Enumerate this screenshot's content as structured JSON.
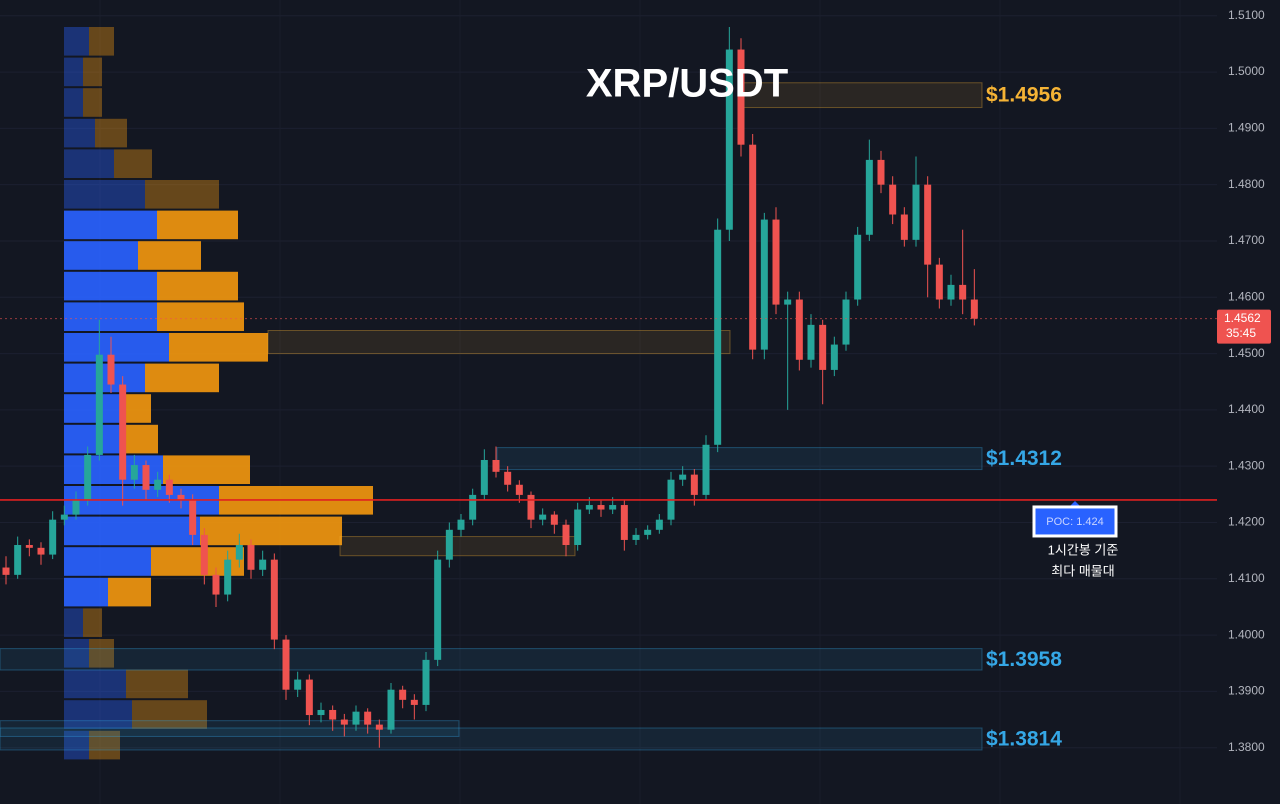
{
  "chart_data": {
    "type": "candlestick",
    "title": "XRP/USDT",
    "ylim": [
      1.37,
      1.5128
    ],
    "yticks": [
      {
        "value": 1.38,
        "label": "1.3800"
      },
      {
        "value": 1.39,
        "label": "1.3900"
      },
      {
        "value": 1.4,
        "label": "1.4000"
      },
      {
        "value": 1.41,
        "label": "1.4100"
      },
      {
        "value": 1.42,
        "label": "1.4200"
      },
      {
        "value": 1.43,
        "label": "1.4300"
      },
      {
        "value": 1.44,
        "label": "1.4400"
      },
      {
        "value": 1.45,
        "label": "1.4500"
      },
      {
        "value": 1.46,
        "label": "1.4600"
      },
      {
        "value": 1.47,
        "label": "1.4700"
      },
      {
        "value": 1.48,
        "label": "1.4800"
      },
      {
        "value": 1.49,
        "label": "1.4900"
      },
      {
        "value": 1.5,
        "label": "1.5000"
      },
      {
        "value": 1.51,
        "label": "1.5100"
      }
    ],
    "grid": true,
    "up_color": "#26a69a",
    "down_color": "#ef5350",
    "candles": [
      [
        1.412,
        1.414,
        1.409,
        1.4107
      ],
      [
        1.4107,
        1.4175,
        1.41,
        1.416
      ],
      [
        1.416,
        1.417,
        1.414,
        1.4155
      ],
      [
        1.4155,
        1.4165,
        1.4125,
        1.4143
      ],
      [
        1.4143,
        1.422,
        1.4135,
        1.4205
      ],
      [
        1.4205,
        1.423,
        1.4195,
        1.4214
      ],
      [
        1.4214,
        1.4255,
        1.4205,
        1.424
      ],
      [
        1.424,
        1.4335,
        1.423,
        1.432
      ],
      [
        1.432,
        1.456,
        1.431,
        1.4498
      ],
      [
        1.4498,
        1.453,
        1.443,
        1.4445
      ],
      [
        1.4445,
        1.446,
        1.423,
        1.4276
      ],
      [
        1.4276,
        1.432,
        1.426,
        1.4302
      ],
      [
        1.4302,
        1.431,
        1.424,
        1.4258
      ],
      [
        1.4258,
        1.429,
        1.4245,
        1.4276
      ],
      [
        1.4276,
        1.4285,
        1.4235,
        1.4249
      ],
      [
        1.4249,
        1.426,
        1.4225,
        1.424
      ],
      [
        1.424,
        1.425,
        1.416,
        1.4178
      ],
      [
        1.4178,
        1.419,
        1.409,
        1.4107
      ],
      [
        1.4107,
        1.412,
        1.405,
        1.4072
      ],
      [
        1.4072,
        1.415,
        1.406,
        1.4134
      ],
      [
        1.4134,
        1.418,
        1.412,
        1.416
      ],
      [
        1.416,
        1.417,
        1.41,
        1.4116
      ],
      [
        1.4116,
        1.415,
        1.4105,
        1.4134
      ],
      [
        1.4134,
        1.4145,
        1.3975,
        1.3992
      ],
      [
        1.3992,
        1.4,
        1.3885,
        1.3903
      ],
      [
        1.3903,
        1.3935,
        1.389,
        1.3921
      ],
      [
        1.3921,
        1.393,
        1.384,
        1.3858
      ],
      [
        1.3858,
        1.388,
        1.3845,
        1.3867
      ],
      [
        1.3867,
        1.3875,
        1.383,
        1.385
      ],
      [
        1.385,
        1.386,
        1.382,
        1.3841
      ],
      [
        1.3841,
        1.3875,
        1.383,
        1.3864
      ],
      [
        1.3864,
        1.387,
        1.3825,
        1.3841
      ],
      [
        1.3841,
        1.385,
        1.38,
        1.3832
      ],
      [
        1.3832,
        1.3915,
        1.3825,
        1.3903
      ],
      [
        1.3903,
        1.391,
        1.387,
        1.3885
      ],
      [
        1.3885,
        1.3895,
        1.385,
        1.3876
      ],
      [
        1.3876,
        1.397,
        1.3865,
        1.3956
      ],
      [
        1.3956,
        1.415,
        1.3945,
        1.4134
      ],
      [
        1.4134,
        1.42,
        1.412,
        1.4187
      ],
      [
        1.4187,
        1.4215,
        1.4175,
        1.4205
      ],
      [
        1.4205,
        1.426,
        1.4195,
        1.4249
      ],
      [
        1.4249,
        1.433,
        1.424,
        1.4311
      ],
      [
        1.4311,
        1.4335,
        1.428,
        1.429
      ],
      [
        1.429,
        1.43,
        1.4255,
        1.4267
      ],
      [
        1.4267,
        1.4275,
        1.4235,
        1.4249
      ],
      [
        1.4249,
        1.4255,
        1.419,
        1.4205
      ],
      [
        1.4205,
        1.4225,
        1.4195,
        1.4214
      ],
      [
        1.4214,
        1.422,
        1.418,
        1.4196
      ],
      [
        1.4196,
        1.4205,
        1.414,
        1.416
      ],
      [
        1.416,
        1.4235,
        1.415,
        1.4223
      ],
      [
        1.4223,
        1.4245,
        1.4215,
        1.4231
      ],
      [
        1.4231,
        1.424,
        1.421,
        1.4223
      ],
      [
        1.4223,
        1.4245,
        1.4215,
        1.4231
      ],
      [
        1.4231,
        1.424,
        1.415,
        1.4169
      ],
      [
        1.4169,
        1.419,
        1.416,
        1.4178
      ],
      [
        1.4178,
        1.4195,
        1.417,
        1.4187
      ],
      [
        1.4187,
        1.4215,
        1.418,
        1.4205
      ],
      [
        1.4205,
        1.429,
        1.4195,
        1.4276
      ],
      [
        1.4276,
        1.43,
        1.4265,
        1.4285
      ],
      [
        1.4285,
        1.4295,
        1.423,
        1.4249
      ],
      [
        1.4249,
        1.4355,
        1.424,
        1.4338
      ],
      [
        1.4338,
        1.474,
        1.4325,
        1.472
      ],
      [
        1.472,
        1.508,
        1.47,
        1.504
      ],
      [
        1.504,
        1.506,
        1.485,
        1.4871
      ],
      [
        1.4871,
        1.489,
        1.449,
        1.4507
      ],
      [
        1.4507,
        1.475,
        1.449,
        1.4738
      ],
      [
        1.4738,
        1.476,
        1.457,
        1.4587
      ],
      [
        1.4587,
        1.461,
        1.44,
        1.4596
      ],
      [
        1.4596,
        1.461,
        1.447,
        1.4489
      ],
      [
        1.4489,
        1.457,
        1.4475,
        1.4551
      ],
      [
        1.4551,
        1.456,
        1.441,
        1.4471
      ],
      [
        1.4471,
        1.453,
        1.446,
        1.4516
      ],
      [
        1.4516,
        1.461,
        1.4505,
        1.4596
      ],
      [
        1.4596,
        1.4725,
        1.4585,
        1.4711
      ],
      [
        1.4711,
        1.488,
        1.47,
        1.4844
      ],
      [
        1.4844,
        1.486,
        1.4785,
        1.48
      ],
      [
        1.48,
        1.4815,
        1.473,
        1.4747
      ],
      [
        1.4747,
        1.476,
        1.469,
        1.4702
      ],
      [
        1.4702,
        1.485,
        1.469,
        1.48
      ],
      [
        1.48,
        1.4815,
        1.46,
        1.4658
      ],
      [
        1.4658,
        1.467,
        1.458,
        1.4596
      ],
      [
        1.4596,
        1.464,
        1.4585,
        1.4622
      ],
      [
        1.4622,
        1.472,
        1.457,
        1.4596
      ],
      [
        1.4596,
        1.465,
        1.455,
        1.4562
      ]
    ],
    "last_price_label": "1.4562",
    "countdown": "35:45",
    "profile": {
      "buy_color": "#2962ff",
      "sell_color": "#f0960f",
      "buy": [
        25,
        19,
        19,
        31,
        50,
        81,
        93,
        74,
        93,
        93,
        105,
        81,
        56,
        56,
        99,
        155,
        136,
        87,
        44,
        19,
        25,
        62,
        68,
        25
      ],
      "sell": [
        25,
        19,
        19,
        32,
        38,
        74,
        81,
        63,
        81,
        87,
        99,
        74,
        31,
        38,
        87,
        154,
        142,
        93,
        43,
        19,
        25,
        62,
        75,
        31
      ]
    },
    "zones": [
      {
        "label": "$1.4956",
        "low": 1.4937,
        "high": 1.4981,
        "color": "#f5b335"
      },
      {
        "label": "$1.4312",
        "low": 1.4294,
        "high": 1.4333,
        "color": "#35a7e6"
      },
      {
        "label": "$1.3958",
        "low": 1.3938,
        "high": 1.3976,
        "color": "#35a7e6"
      },
      {
        "label": "$1.3814",
        "low": 1.3796,
        "high": 1.3835,
        "color": "#35a7e6"
      },
      {
        "low": 1.45,
        "high": 1.4541,
        "color": "#f5b335"
      },
      {
        "low": 1.4141,
        "high": 1.4175,
        "color": "#f5b335"
      },
      {
        "low": 1.382,
        "high": 1.3848,
        "color": "#35a7e6"
      }
    ],
    "poc": {
      "value": 1.424,
      "label": "POC: 1.424",
      "color": "#e02020"
    },
    "notes": [
      "1시간봉 기준",
      "최다 매물대"
    ]
  }
}
